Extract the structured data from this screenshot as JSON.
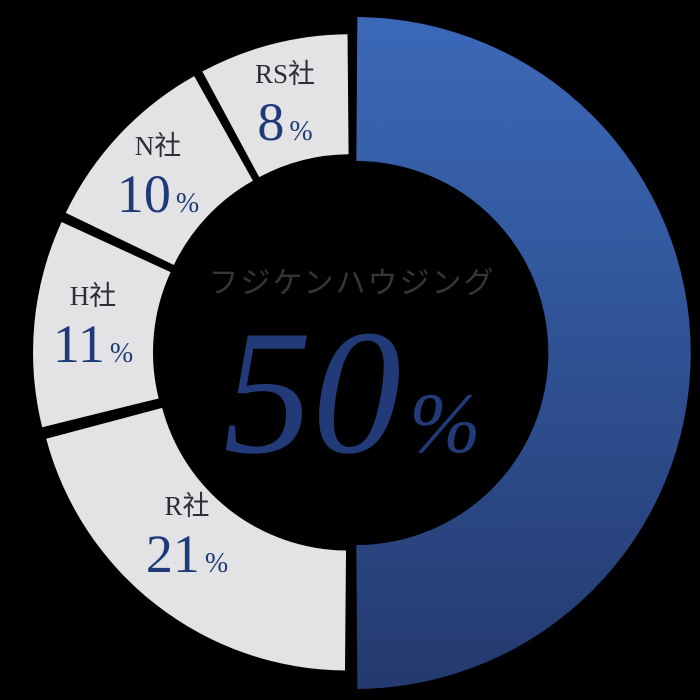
{
  "background_color": "#000000",
  "chart_data": {
    "type": "pie",
    "subtype": "donut",
    "direction": "clockwise",
    "start_angle_deg": 0,
    "percent_sign": "%",
    "center_label": "フジケンハウジング",
    "center_value": 50,
    "segments": [
      {
        "label": "フジケンハウジング",
        "value": 50,
        "highlight": true,
        "color_top": "#3b69b8",
        "color_bottom": "#243a6f"
      },
      {
        "label": "R社",
        "value": 21,
        "color": "#e3e3e5"
      },
      {
        "label": "H社",
        "value": 11,
        "color": "#e3e3e5"
      },
      {
        "label": "N社",
        "value": 10,
        "color": "#e3e3e5"
      },
      {
        "label": "RS社",
        "value": 8,
        "color": "#e3e3e5"
      }
    ],
    "text_colors": {
      "segment_name": "#2e2e34",
      "segment_value": "#1f3a78",
      "center_label": "#33363b",
      "center_value": "#223b78"
    }
  }
}
